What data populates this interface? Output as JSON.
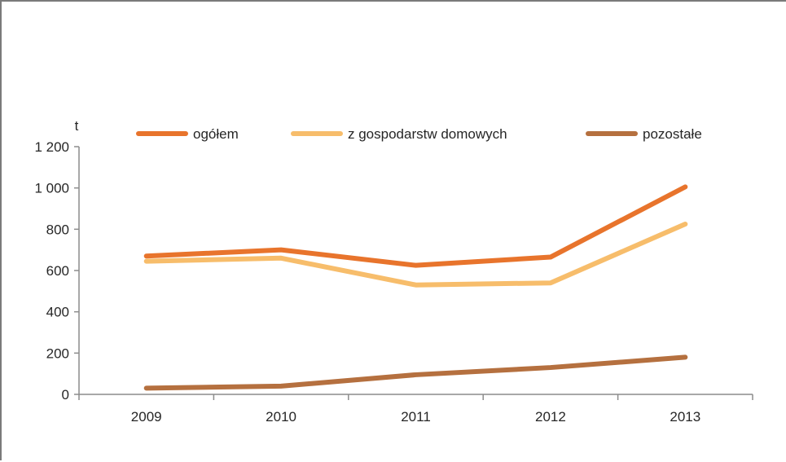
{
  "chart_data": {
    "type": "line",
    "title": "",
    "unit_label": "t",
    "x": [
      "2009",
      "2010",
      "2011",
      "2012",
      "2013"
    ],
    "ylim": [
      0,
      1200
    ],
    "yticks": [
      0,
      200,
      400,
      600,
      800,
      1000,
      1200
    ],
    "ytick_labels": [
      "0",
      "200",
      "400",
      "600",
      "800",
      "1 000",
      "1 200"
    ],
    "grid": false,
    "legend_position": "top",
    "series": [
      {
        "name": "ogółem",
        "color": "#e8742c",
        "values": [
          670,
          700,
          625,
          665,
          1005
        ]
      },
      {
        "name": "z gospodarstw domowych",
        "color": "#f7bd6b",
        "values": [
          645,
          660,
          530,
          540,
          825
        ]
      },
      {
        "name": "pozostałe",
        "color": "#b5703f",
        "values": [
          30,
          40,
          95,
          130,
          180
        ]
      }
    ]
  }
}
